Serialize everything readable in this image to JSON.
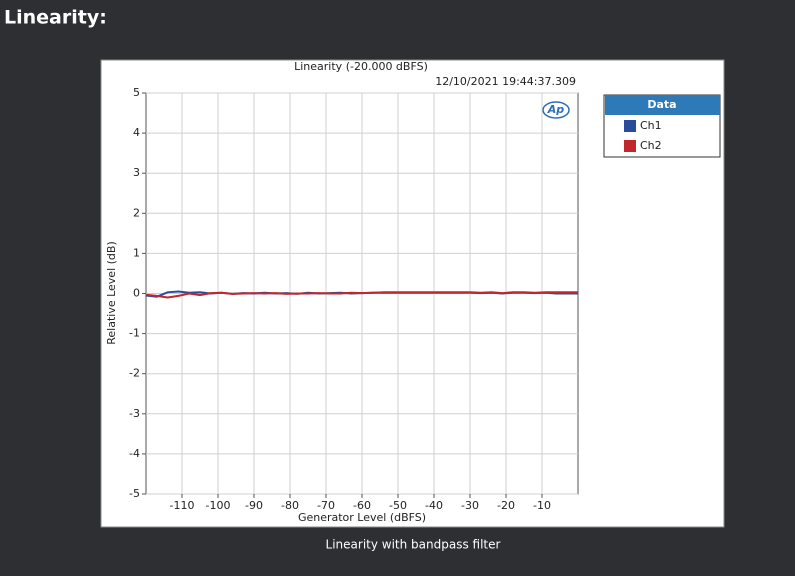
{
  "header": {
    "title": "Linearity:"
  },
  "caption": "Linearity with bandpass filter",
  "chart_data": {
    "type": "line",
    "title": "Linearity (-20.000 dBFS)",
    "timestamp": "12/10/2021 19:44:37.309",
    "logo_text": "Ap",
    "x_label": "Generator Level (dBFS)",
    "y_label": "Relative Level (dB)",
    "x": [
      -120,
      -117,
      -114,
      -111,
      -108,
      -105,
      -102,
      -99,
      -96,
      -93,
      -90,
      -87,
      -84,
      -81,
      -78,
      -75,
      -72,
      -69,
      -66,
      -63,
      -60,
      -57,
      -54,
      -51,
      -48,
      -45,
      -42,
      -39,
      -36,
      -33,
      -30,
      -27,
      -24,
      -21,
      -18,
      -15,
      -12,
      -9,
      -6,
      -3,
      0
    ],
    "series": [
      {
        "name": "Ch1",
        "color": "#2a4d9b",
        "values": [
          -0.05,
          -0.08,
          0.03,
          0.05,
          0.02,
          0.03,
          0.0,
          0.02,
          -0.01,
          0.01,
          0.0,
          0.02,
          0.0,
          0.01,
          -0.01,
          0.02,
          0.0,
          0.01,
          0.02,
          0.0,
          0.01,
          0.02,
          0.02,
          0.02,
          0.02,
          0.02,
          0.02,
          0.02,
          0.02,
          0.02,
          0.02,
          0.01,
          0.02,
          0.0,
          0.02,
          0.02,
          0.01,
          0.02,
          0.0,
          0.0,
          0.0
        ]
      },
      {
        "name": "Ch2",
        "color": "#c0282c",
        "values": [
          -0.03,
          -0.06,
          -0.1,
          -0.06,
          0.0,
          -0.04,
          0.01,
          0.02,
          -0.01,
          0.0,
          0.01,
          0.0,
          0.01,
          -0.01,
          0.0,
          0.0,
          0.01,
          0.0,
          0.0,
          0.02,
          0.01,
          0.02,
          0.03,
          0.03,
          0.03,
          0.03,
          0.03,
          0.03,
          0.03,
          0.03,
          0.03,
          0.02,
          0.03,
          0.01,
          0.03,
          0.03,
          0.02,
          0.03,
          0.03,
          0.03,
          0.03
        ]
      }
    ],
    "xlim": [
      -120,
      0
    ],
    "xticks": [
      -110,
      -100,
      -90,
      -80,
      -70,
      -60,
      -50,
      -40,
      -30,
      -20,
      -10
    ],
    "ylim": [
      -5,
      5
    ],
    "yticks": [
      -5,
      -4,
      -3,
      -2,
      -1,
      0,
      1,
      2,
      3,
      4,
      5
    ],
    "grid": true,
    "legend_title": "Data",
    "legend_position": "right"
  }
}
